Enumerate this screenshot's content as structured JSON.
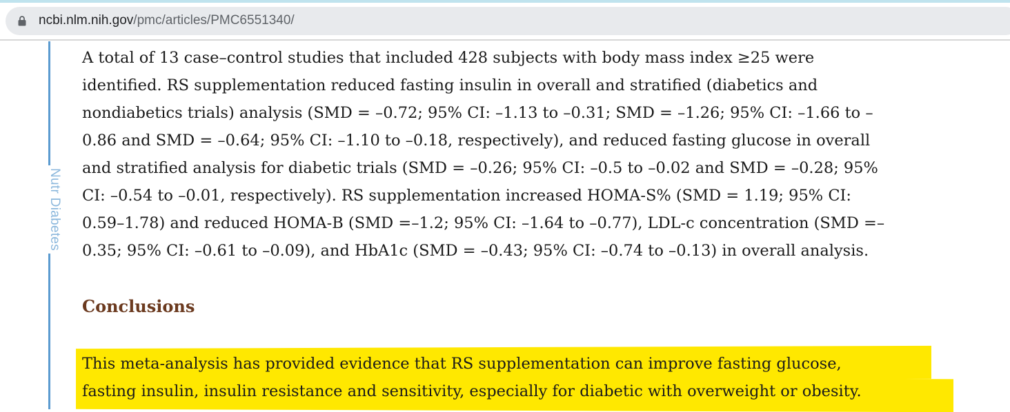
{
  "browser": {
    "url_host": "ncbi.nlm.nih.gov",
    "url_path": "/pmc/articles/PMC6551340/"
  },
  "sidebar": {
    "journal_label": "Nutr Diabetes"
  },
  "results": {
    "lines": [
      "A total of 13 case–control studies that included 428 subjects with body mass index ≥25 were",
      "identified. RS supplementation reduced fasting insulin in overall and stratified (diabetics and",
      "nondiabetics trials) analysis (SMD = –0.72; 95% CI: –1.13 to –0.31; SMD = –1.26; 95% CI: –1.66 to –",
      "0.86 and SMD = –0.64; 95% CI: –1.10 to –0.18, respectively), and reduced fasting glucose in overall",
      "and stratified analysis for diabetic trials (SMD = –0.26; 95% CI: –0.5 to –0.02 and SMD = –0.28; 95%",
      "CI: –0.54 to –0.01, respectively). RS supplementation increased HOMA-S% (SMD = 1.19; 95% CI:",
      "0.59–1.78) and reduced HOMA-B (SMD =–1.2; 95% CI: –1.64 to –0.77), LDL-c concentration (SMD =–",
      "0.35; 95% CI: –0.61 to –0.09), and HbA1c (SMD = –0.43; 95% CI: –0.74 to –0.13) in overall analysis."
    ]
  },
  "conclusions": {
    "heading": "Conclusions",
    "lines": [
      "This meta-analysis has provided evidence that RS supplementation can improve fasting glucose,",
      "fasting insulin, insulin resistance and sensitivity, especially for diabetic with overweight or obesity."
    ],
    "highlight_color": "#ffe800"
  },
  "colors": {
    "heading": "#6b3a1f",
    "side_accent": "#5b9bd0"
  }
}
